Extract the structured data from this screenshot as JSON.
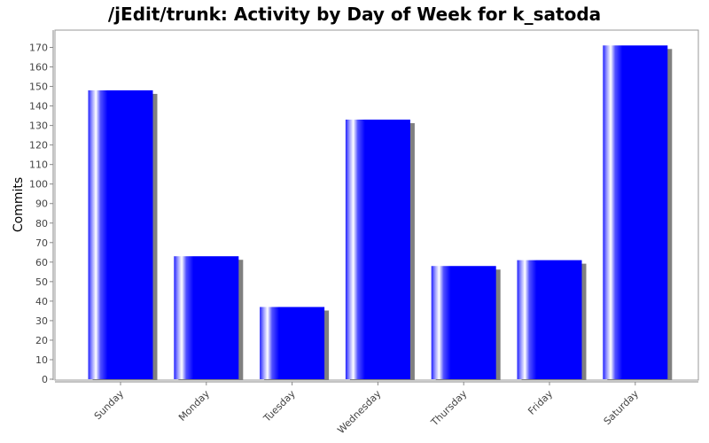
{
  "chart_data": {
    "type": "bar",
    "title": "/jEdit/trunk: Activity by Day of Week for k_satoda",
    "xlabel": "",
    "ylabel": "Commits",
    "categories": [
      "Sunday",
      "Monday",
      "Tuesday",
      "Wednesday",
      "Thursday",
      "Friday",
      "Saturday"
    ],
    "values": [
      148,
      63,
      37,
      133,
      58,
      61,
      171
    ],
    "ylim": [
      0,
      180
    ],
    "yticks": [
      0,
      10,
      20,
      30,
      40,
      50,
      60,
      70,
      80,
      90,
      100,
      110,
      120,
      130,
      140,
      150,
      160,
      170
    ],
    "grid": false,
    "legend": "none",
    "colors": {
      "bar": "#0000ff",
      "bar_highlight": "#ffffff",
      "shadow": "#808080",
      "axis": "#888888",
      "plot_border": "#888888"
    }
  }
}
